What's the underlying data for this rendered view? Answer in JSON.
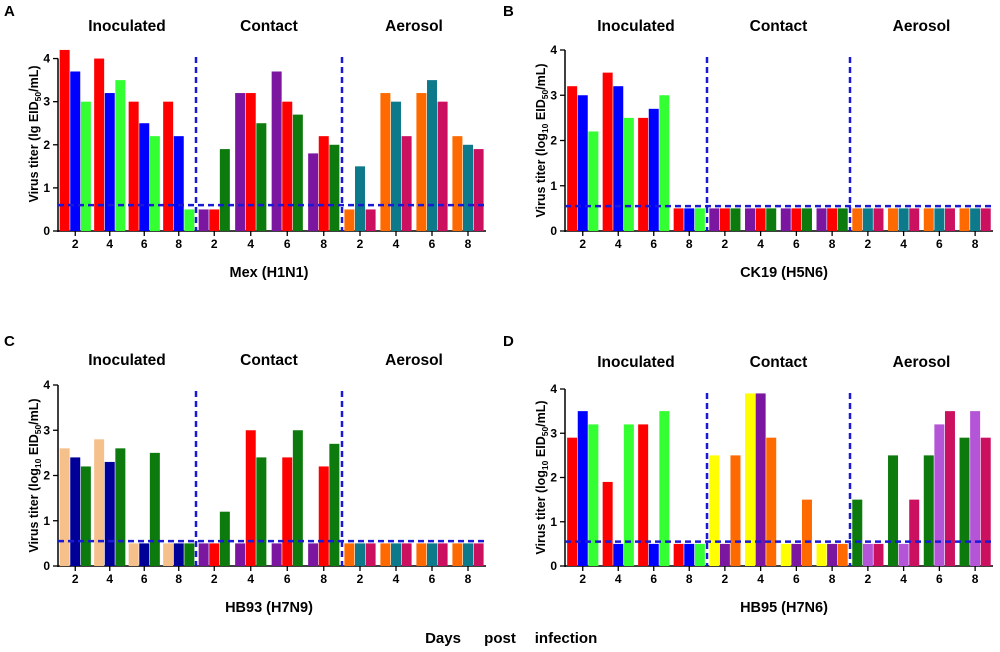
{
  "figure": {
    "xlabel_prefix": "Days",
    "xlabel_middle": "post",
    "xlabel_suffix": "infection"
  },
  "chart_data": [
    {
      "panel": "A",
      "type": "bar",
      "subtitle": "Mex (H1N1)",
      "ylabel": "Virus titer (lg EID50/mL)",
      "ylabel_parts": {
        "pre": "Virus titer (lg EID",
        "sub": "50",
        "post": "/mL)"
      },
      "ylim": [
        0,
        4.5
      ],
      "yticks": [
        "0",
        "1",
        "2",
        "3",
        "4"
      ],
      "detection_limit": 0.6,
      "groups": [
        {
          "label": "Inoculated",
          "days": [
            {
              "day": "2",
              "values": [
                4.2,
                3.7,
                3.0
              ],
              "colors": [
                "#ff0000",
                "#0000ff",
                "#33ff33"
              ]
            },
            {
              "day": "4",
              "values": [
                4.0,
                3.2,
                3.5
              ],
              "colors": [
                "#ff0000",
                "#0000ff",
                "#33ff33"
              ]
            },
            {
              "day": "6",
              "values": [
                3.0,
                2.5,
                2.2
              ],
              "colors": [
                "#ff0000",
                "#0000ff",
                "#33ff33"
              ]
            },
            {
              "day": "8",
              "values": [
                3.0,
                2.2,
                0.5
              ],
              "colors": [
                "#ff0000",
                "#0000ff",
                "#33ff33"
              ]
            }
          ]
        },
        {
          "label": "Contact",
          "days": [
            {
              "day": "2",
              "values": [
                0.5,
                0.5,
                1.9
              ],
              "colors": [
                "#7b16a0",
                "#ff0000",
                "#0d7a0d"
              ]
            },
            {
              "day": "4",
              "values": [
                3.2,
                3.2,
                2.5
              ],
              "colors": [
                "#7b16a0",
                "#ff0000",
                "#0d7a0d"
              ]
            },
            {
              "day": "6",
              "values": [
                3.7,
                3.0,
                2.7
              ],
              "colors": [
                "#7b16a0",
                "#ff0000",
                "#0d7a0d"
              ]
            },
            {
              "day": "8",
              "values": [
                1.8,
                2.2,
                2.0
              ],
              "colors": [
                "#7b16a0",
                "#ff0000",
                "#0d7a0d"
              ]
            }
          ]
        },
        {
          "label": "Aerosol",
          "days": [
            {
              "day": "2",
              "values": [
                0.5,
                1.5,
                0.5
              ],
              "colors": [
                "#ff6a00",
                "#0d7a8c",
                "#cc1060"
              ]
            },
            {
              "day": "4",
              "values": [
                3.2,
                3.0,
                2.2
              ],
              "colors": [
                "#ff6a00",
                "#0d7a8c",
                "#cc1060"
              ]
            },
            {
              "day": "6",
              "values": [
                3.2,
                3.5,
                3.0
              ],
              "colors": [
                "#ff6a00",
                "#0d7a8c",
                "#cc1060"
              ]
            },
            {
              "day": "8",
              "values": [
                2.2,
                2.0,
                1.9
              ],
              "colors": [
                "#ff6a00",
                "#0d7a8c",
                "#cc1060"
              ]
            }
          ]
        }
      ]
    },
    {
      "panel": "B",
      "type": "bar",
      "subtitle": "CK19 (H5N6)",
      "ylabel": "Virus titer (log10 EID50/mL)",
      "ylabel_parts": {
        "pre": "Virus titer (log",
        "sub": "10",
        "mid": " EID",
        "sub2": "50",
        "post": "/mL)"
      },
      "ylim": [
        0,
        4
      ],
      "yticks": [
        "0",
        "1",
        "2",
        "3",
        "4"
      ],
      "detection_limit": 0.55,
      "groups": [
        {
          "label": "Inoculated",
          "days": [
            {
              "day": "2",
              "values": [
                3.2,
                3.0,
                2.2
              ],
              "colors": [
                "#ff0000",
                "#0000ff",
                "#33ff33"
              ]
            },
            {
              "day": "4",
              "values": [
                3.5,
                3.2,
                2.5
              ],
              "colors": [
                "#ff0000",
                "#0000ff",
                "#33ff33"
              ]
            },
            {
              "day": "6",
              "values": [
                2.5,
                2.7,
                3.0
              ],
              "colors": [
                "#ff0000",
                "#0000ff",
                "#33ff33"
              ]
            },
            {
              "day": "8",
              "values": [
                0.5,
                0.5,
                0.5
              ],
              "colors": [
                "#ff0000",
                "#0000ff",
                "#33ff33"
              ]
            }
          ]
        },
        {
          "label": "Contact",
          "days": [
            {
              "day": "2",
              "values": [
                0.5,
                0.5,
                0.5
              ],
              "colors": [
                "#7b16a0",
                "#ff0000",
                "#0d7a0d"
              ]
            },
            {
              "day": "4",
              "values": [
                0.5,
                0.5,
                0.5
              ],
              "colors": [
                "#7b16a0",
                "#ff0000",
                "#0d7a0d"
              ]
            },
            {
              "day": "6",
              "values": [
                0.5,
                0.5,
                0.5
              ],
              "colors": [
                "#7b16a0",
                "#ff0000",
                "#0d7a0d"
              ]
            },
            {
              "day": "8",
              "values": [
                0.5,
                0.5,
                0.5
              ],
              "colors": [
                "#7b16a0",
                "#ff0000",
                "#0d7a0d"
              ]
            }
          ]
        },
        {
          "label": "Aerosol",
          "days": [
            {
              "day": "2",
              "values": [
                0.5,
                0.5,
                0.5
              ],
              "colors": [
                "#ff6a00",
                "#0d7a8c",
                "#cc1060"
              ]
            },
            {
              "day": "4",
              "values": [
                0.5,
                0.5,
                0.5
              ],
              "colors": [
                "#ff6a00",
                "#0d7a8c",
                "#cc1060"
              ]
            },
            {
              "day": "6",
              "values": [
                0.5,
                0.5,
                0.5
              ],
              "colors": [
                "#ff6a00",
                "#0d7a8c",
                "#cc1060"
              ]
            },
            {
              "day": "8",
              "values": [
                0.5,
                0.5,
                0.5
              ],
              "colors": [
                "#ff6a00",
                "#0d7a8c",
                "#cc1060"
              ]
            }
          ]
        }
      ]
    },
    {
      "panel": "C",
      "type": "bar",
      "subtitle": "HB93 (H7N9)",
      "ylabel": "Virus titer (log10 EID50/mL)",
      "ylabel_parts": {
        "pre": "Virus titer (log",
        "sub": "10",
        "mid": " EID",
        "sub2": "50",
        "post": "/mL)"
      },
      "ylim": [
        0,
        4
      ],
      "yticks": [
        "0",
        "1",
        "2",
        "3",
        "4"
      ],
      "detection_limit": 0.55,
      "groups": [
        {
          "label": "Inoculated",
          "days": [
            {
              "day": "2",
              "values": [
                2.6,
                2.4,
                2.2
              ],
              "colors": [
                "#f5c08a",
                "#000099",
                "#0d7a0d"
              ]
            },
            {
              "day": "4",
              "values": [
                2.8,
                2.3,
                2.6
              ],
              "colors": [
                "#f5c08a",
                "#000099",
                "#0d7a0d"
              ]
            },
            {
              "day": "6",
              "values": [
                0.5,
                0.5,
                2.5
              ],
              "colors": [
                "#f5c08a",
                "#000099",
                "#0d7a0d"
              ]
            },
            {
              "day": "8",
              "values": [
                0.5,
                0.5,
                0.5
              ],
              "colors": [
                "#f5c08a",
                "#000099",
                "#0d7a0d"
              ]
            }
          ]
        },
        {
          "label": "Contact",
          "days": [
            {
              "day": "2",
              "values": [
                0.5,
                0.5,
                1.2
              ],
              "colors": [
                "#7b16a0",
                "#ff0000",
                "#0d7a0d"
              ]
            },
            {
              "day": "4",
              "values": [
                0.5,
                3.0,
                2.4
              ],
              "colors": [
                "#7b16a0",
                "#ff0000",
                "#0d7a0d"
              ]
            },
            {
              "day": "6",
              "values": [
                0.5,
                2.4,
                3.0
              ],
              "colors": [
                "#7b16a0",
                "#ff0000",
                "#0d7a0d"
              ]
            },
            {
              "day": "8",
              "values": [
                0.5,
                2.2,
                2.7
              ],
              "colors": [
                "#7b16a0",
                "#ff0000",
                "#0d7a0d"
              ]
            }
          ]
        },
        {
          "label": "Aerosol",
          "days": [
            {
              "day": "2",
              "values": [
                0.5,
                0.5,
                0.5
              ],
              "colors": [
                "#ff6a00",
                "#0d7a8c",
                "#cc1060"
              ]
            },
            {
              "day": "4",
              "values": [
                0.5,
                0.5,
                0.5
              ],
              "colors": [
                "#ff6a00",
                "#0d7a8c",
                "#cc1060"
              ]
            },
            {
              "day": "6",
              "values": [
                0.5,
                0.5,
                0.5
              ],
              "colors": [
                "#ff6a00",
                "#0d7a8c",
                "#cc1060"
              ]
            },
            {
              "day": "8",
              "values": [
                0.5,
                0.5,
                0.5
              ],
              "colors": [
                "#ff6a00",
                "#0d7a8c",
                "#cc1060"
              ]
            }
          ]
        }
      ]
    },
    {
      "panel": "D",
      "type": "bar",
      "subtitle": "HB95 (H7N6)",
      "ylabel": "Virus titer (log10 EID50/mL)",
      "ylabel_parts": {
        "pre": "Virus titer (log",
        "sub": "10",
        "mid": " EID",
        "sub2": "50",
        "post": "/mL)"
      },
      "ylim": [
        0,
        4
      ],
      "yticks": [
        "0",
        "1",
        "2",
        "3",
        "4"
      ],
      "detection_limit": 0.55,
      "groups": [
        {
          "label": "Inoculated",
          "days": [
            {
              "day": "2",
              "values": [
                2.9,
                3.5,
                3.2
              ],
              "colors": [
                "#ff0000",
                "#0000ff",
                "#33ff33"
              ]
            },
            {
              "day": "4",
              "values": [
                1.9,
                0.5,
                3.2
              ],
              "colors": [
                "#ff0000",
                "#0000ff",
                "#33ff33"
              ]
            },
            {
              "day": "6",
              "values": [
                3.2,
                0.5,
                3.5
              ],
              "colors": [
                "#ff0000",
                "#0000ff",
                "#33ff33"
              ]
            },
            {
              "day": "8",
              "values": [
                0.5,
                0.5,
                0.5
              ],
              "colors": [
                "#ff0000",
                "#0000ff",
                "#33ff33"
              ]
            }
          ]
        },
        {
          "label": "Contact",
          "days": [
            {
              "day": "2",
              "values": [
                2.5,
                0.5,
                2.5
              ],
              "colors": [
                "#ffff00",
                "#7b16a0",
                "#ff6a00"
              ]
            },
            {
              "day": "4",
              "values": [
                3.9,
                3.9,
                2.9
              ],
              "colors": [
                "#ffff00",
                "#7b16a0",
                "#ff6a00"
              ]
            },
            {
              "day": "6",
              "values": [
                0.5,
                0.5,
                1.5
              ],
              "colors": [
                "#ffff00",
                "#7b16a0",
                "#ff6a00"
              ]
            },
            {
              "day": "8",
              "values": [
                0.5,
                0.5,
                0.5
              ],
              "colors": [
                "#ffff00",
                "#7b16a0",
                "#ff6a00"
              ]
            }
          ]
        },
        {
          "label": "Aerosol",
          "days": [
            {
              "day": "2",
              "values": [
                1.5,
                0.5,
                0.5
              ],
              "colors": [
                "#0d7a0d",
                "#b454d6",
                "#cc1060"
              ]
            },
            {
              "day": "4",
              "values": [
                2.5,
                0.5,
                1.5
              ],
              "colors": [
                "#0d7a0d",
                "#b454d6",
                "#cc1060"
              ]
            },
            {
              "day": "6",
              "values": [
                2.5,
                3.2,
                3.5
              ],
              "colors": [
                "#0d7a0d",
                "#b454d6",
                "#cc1060"
              ]
            },
            {
              "day": "8",
              "values": [
                2.9,
                3.5,
                2.9
              ],
              "colors": [
                "#0d7a0d",
                "#b454d6",
                "#cc1060"
              ]
            }
          ]
        }
      ]
    }
  ]
}
